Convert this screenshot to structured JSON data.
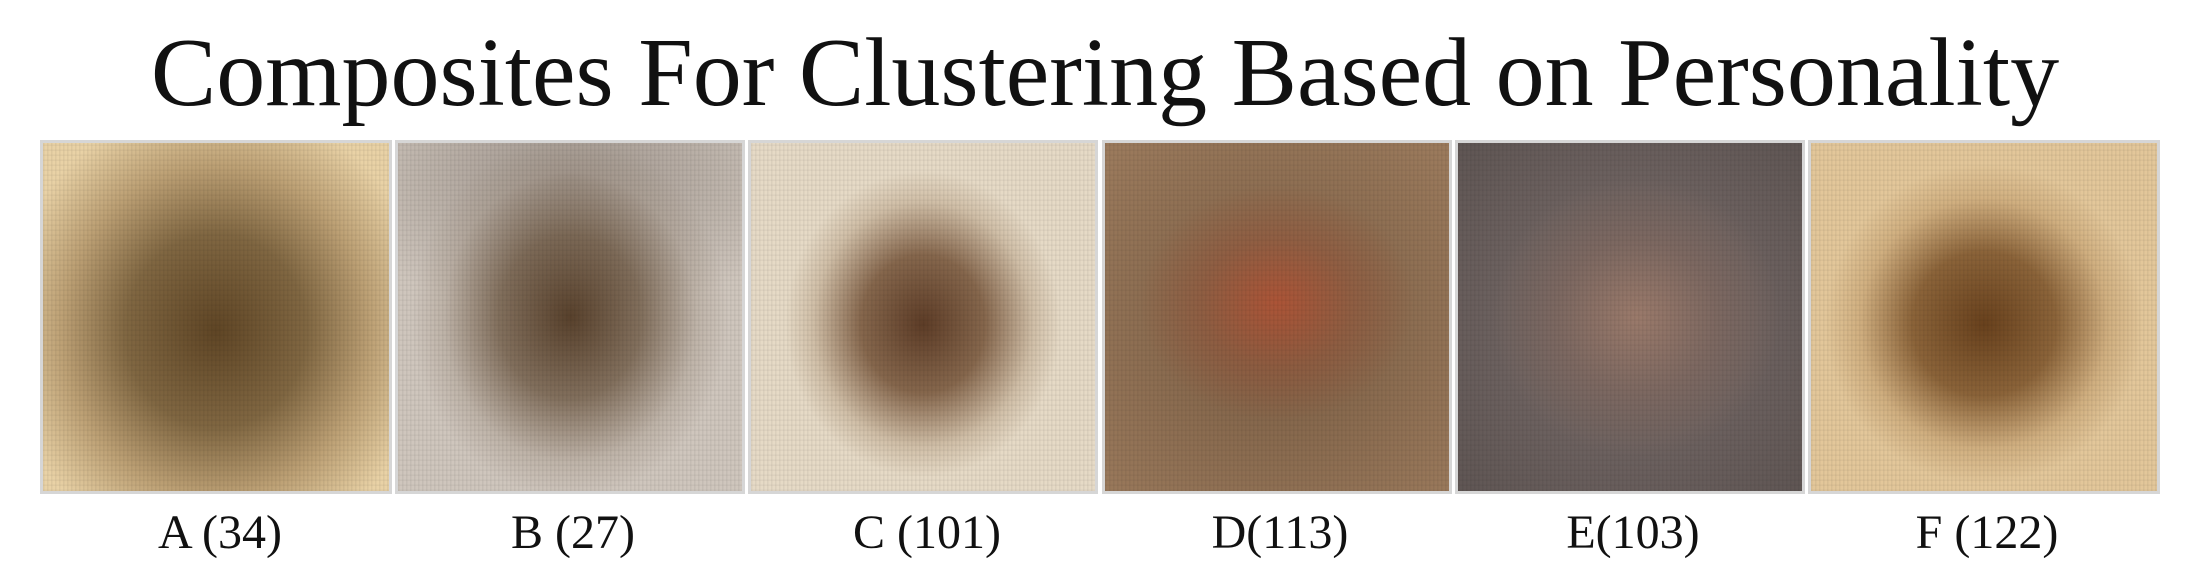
{
  "title": "Composites For Clustering Based on Personality",
  "panels": [
    {
      "label": "A (34)",
      "icon": "composite-portrait-image",
      "colors": {
        "background": "#e9d2a6",
        "center": "#583e1e"
      }
    },
    {
      "label": "B (27)",
      "icon": "composite-portrait-image",
      "colors": {
        "background": "#cfc6bd",
        "center": "#523a24"
      }
    },
    {
      "label": "C (101)",
      "icon": "composite-portrait-image",
      "colors": {
        "background": "#e6dac6",
        "center": "#56341e"
      }
    },
    {
      "label": "D(113)",
      "icon": "composite-portrait-image",
      "colors": {
        "background": "#9b7a5c",
        "center": "#b45234"
      }
    },
    {
      "label": "E(103)",
      "icon": "composite-portrait-image",
      "colors": {
        "background": "#6d6260",
        "center": "#aa826e"
      }
    },
    {
      "label": "F (122)",
      "icon": "composite-portrait-image",
      "colors": {
        "background": "#e3c79a",
        "center": "#623a16"
      }
    }
  ]
}
